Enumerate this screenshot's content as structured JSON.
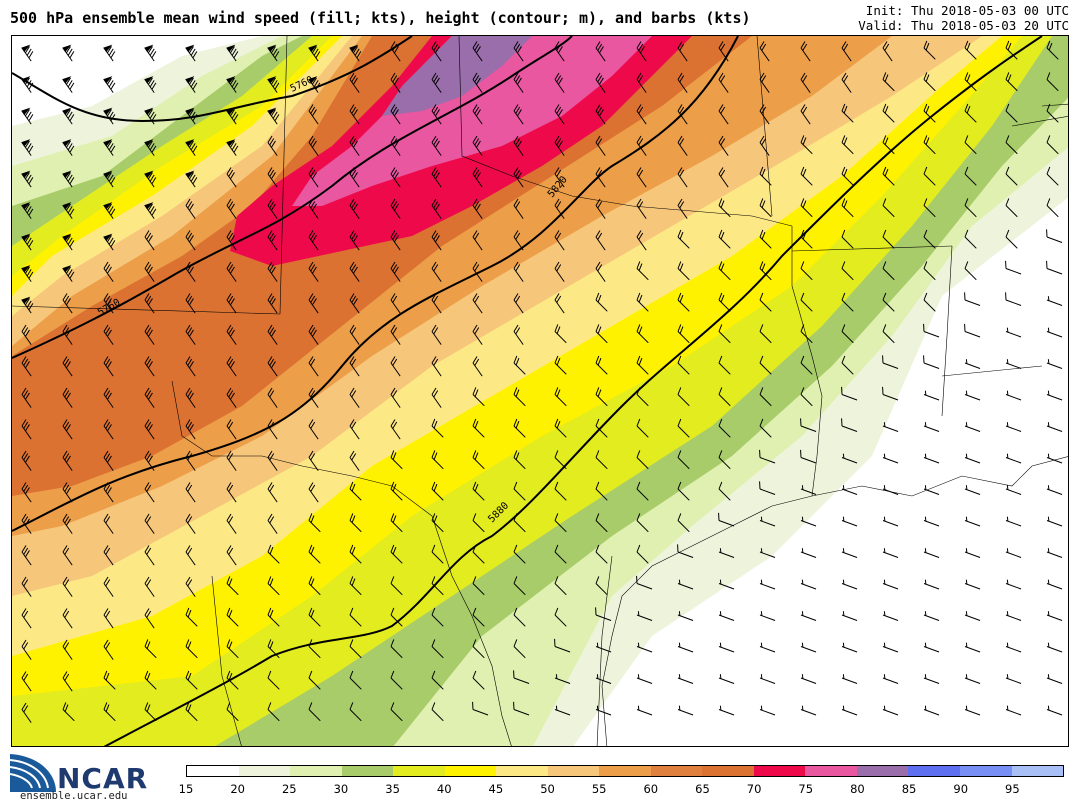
{
  "header": {
    "title": "500 hPa ensemble mean wind speed (fill; kts), height (contour; m), and barbs (kts)",
    "init": "Init: Thu 2018-05-03 00 UTC",
    "valid": "Valid: Thu 2018-05-03 20 UTC"
  },
  "logo": {
    "name": "NCAR",
    "url": "ensemble.ucar.edu"
  },
  "map": {
    "contour_labels": [
      "5760",
      "5760",
      "5820",
      "5880"
    ]
  },
  "colorbar": {
    "ticks": [
      "15",
      "20",
      "25",
      "30",
      "35",
      "40",
      "45",
      "50",
      "55",
      "60",
      "65",
      "70",
      "75",
      "80",
      "85",
      "90",
      "95"
    ],
    "colors": [
      "#ffffff",
      "#eef4dc",
      "#dff0b0",
      "#a8cc6a",
      "#e3ec1e",
      "#fff200",
      "#fde886",
      "#f6c67a",
      "#ec9e48",
      "#e0803e",
      "#dc7232",
      "#ee0a4a",
      "#e957a1",
      "#9a6eaa",
      "#5e6ff0",
      "#7890f6",
      "#a8c0f6"
    ]
  }
}
